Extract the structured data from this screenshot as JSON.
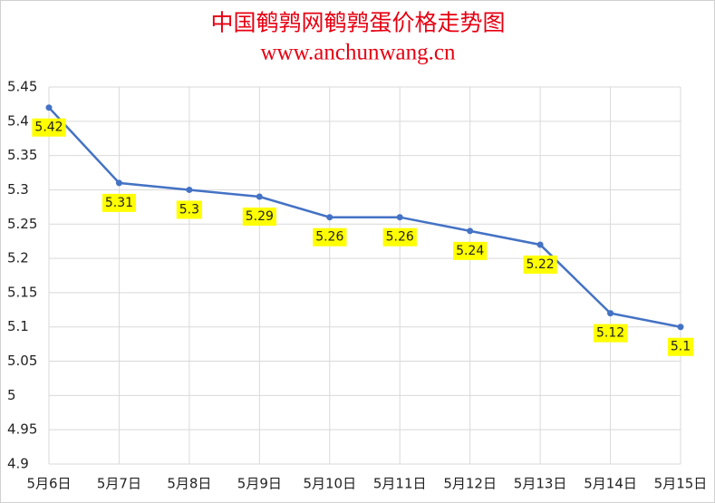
{
  "chart_data": {
    "type": "line",
    "title": "中国鹌鹑网鹌鹑蛋价格走势图",
    "subtitle": "www.anchunwang.cn",
    "categories": [
      "5月6日",
      "5月7日",
      "5月8日",
      "5月9日",
      "5月10日",
      "5月11日",
      "5月12日",
      "5月13日",
      "5月14日",
      "5月15日"
    ],
    "series": [
      {
        "color": "#4472c4",
        "values": [
          5.42,
          5.31,
          5.3,
          5.29,
          5.26,
          5.26,
          5.24,
          5.22,
          5.12,
          5.1
        ]
      }
    ],
    "ylim": [
      4.9,
      5.45
    ],
    "yticks": [
      4.9,
      4.95,
      5,
      5.05,
      5.1,
      5.15,
      5.2,
      5.25,
      5.3,
      5.35,
      5.4,
      5.45
    ],
    "grid": true,
    "label_color": "#ffff00"
  }
}
